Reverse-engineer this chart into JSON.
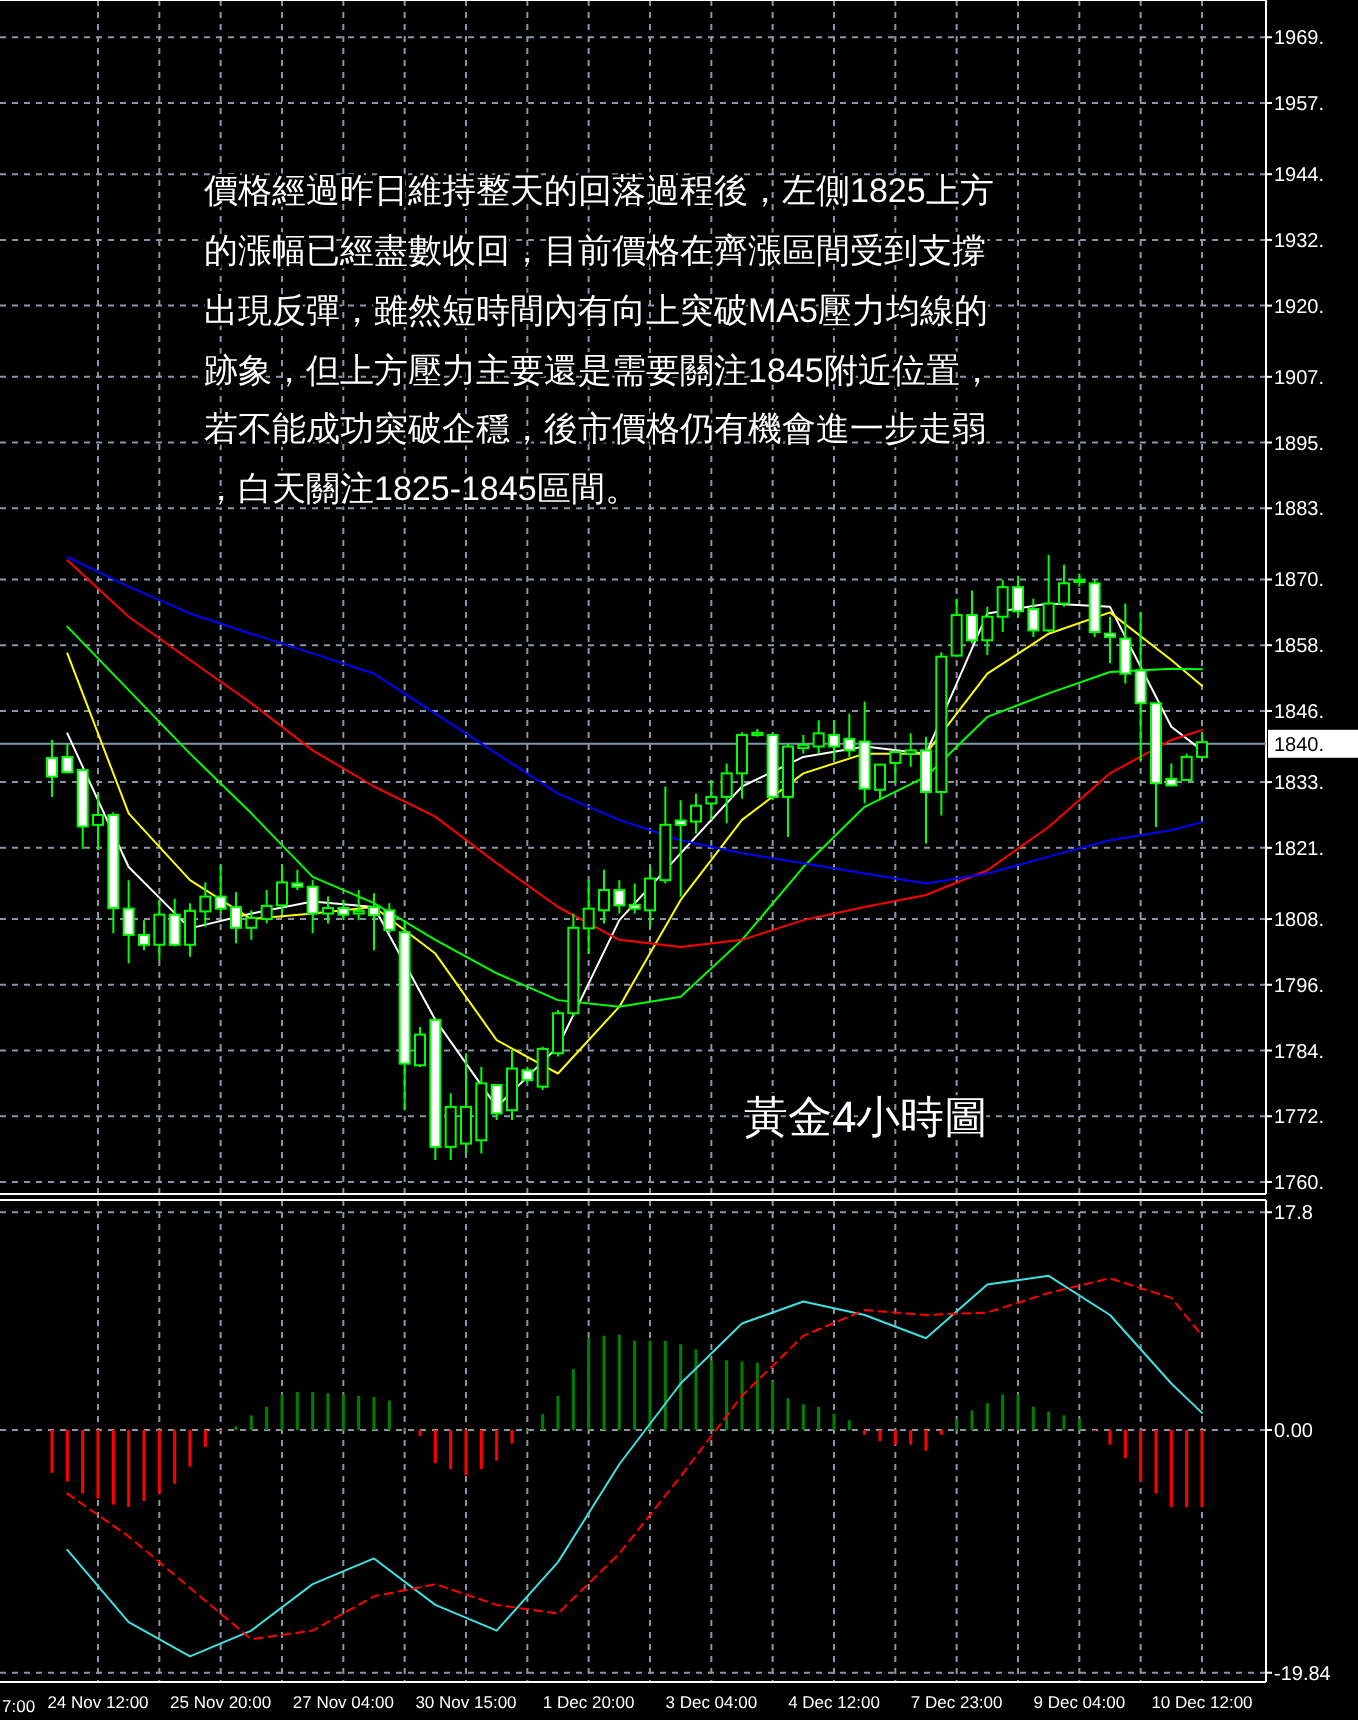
{
  "chart_data": [
    {
      "type": "candlestick",
      "categories": [
        null,
        null,
        null,
        null,
        null,
        null,
        null,
        null,
        null,
        null,
        null,
        null,
        null,
        null,
        null,
        null,
        null,
        null,
        null,
        null,
        null,
        null,
        null,
        null,
        null,
        null,
        null,
        null,
        null,
        null,
        null,
        null,
        null,
        null,
        null,
        null,
        null,
        null,
        null,
        null,
        null,
        null,
        null,
        null,
        null,
        null,
        null,
        null,
        null,
        null,
        null,
        null,
        null,
        null,
        null,
        null,
        null,
        null,
        null,
        null,
        null,
        null,
        null,
        null,
        null,
        null,
        null,
        null,
        null,
        null,
        null,
        null,
        null,
        null,
        null,
        null
      ],
      "tick_labels": "y",
      "ohlc": [
        [
          1837.4,
          1840.7,
          1830.3,
          1834.0
        ],
        [
          1837.6,
          1840.0,
          1834.6,
          1834.8
        ],
        [
          1835.2,
          1835.5,
          1820.8,
          1824.9
        ],
        [
          1825.2,
          1830.9,
          1820.6,
          1827.0
        ],
        [
          1827.0,
          1827.5,
          1805.4,
          1810.0
        ],
        [
          1809.9,
          1815.1,
          1799.9,
          1805.1
        ],
        [
          1805.1,
          1807.8,
          1802.3,
          1803.3
        ],
        [
          1803.3,
          1811.5,
          1800.5,
          1808.8
        ],
        [
          1808.8,
          1811.7,
          1803.0,
          1803.3
        ],
        [
          1803.3,
          1810.9,
          1801.1,
          1809.5
        ],
        [
          1809.4,
          1814.7,
          1806.6,
          1812.1
        ],
        [
          1812.1,
          1817.8,
          1809.0,
          1809.9
        ],
        [
          1810.2,
          1812.9,
          1803.6,
          1806.4
        ],
        [
          1806.4,
          1809.6,
          1804.2,
          1808.2
        ],
        [
          1808.0,
          1813.3,
          1807.2,
          1810.4
        ],
        [
          1810.5,
          1817.8,
          1809.0,
          1814.7
        ],
        [
          1814.5,
          1817.0,
          1813.3,
          1813.9
        ],
        [
          1813.9,
          1815.1,
          1805.4,
          1809.0
        ],
        [
          1809.0,
          1812.1,
          1807.2,
          1810.0
        ],
        [
          1810.0,
          1811.5,
          1807.8,
          1808.8
        ],
        [
          1809.0,
          1813.3,
          1807.8,
          1809.5
        ],
        [
          1810.2,
          1812.7,
          1802.3,
          1808.7
        ],
        [
          1809.6,
          1810.9,
          1805.4,
          1806.0
        ],
        [
          1805.6,
          1807.8,
          1773.1,
          1781.6
        ],
        [
          1781.3,
          1788.3,
          1781.0,
          1786.9
        ],
        [
          1789.6,
          1789.6,
          1764.0,
          1766.4
        ],
        [
          1766.4,
          1776.2,
          1764.0,
          1773.7
        ],
        [
          1767.0,
          1783.5,
          1765.2,
          1773.7
        ],
        [
          1767.6,
          1781.0,
          1765.2,
          1778.0
        ],
        [
          1777.7,
          1777.7,
          1771.3,
          1772.5
        ],
        [
          1773.1,
          1784.1,
          1771.3,
          1780.7
        ],
        [
          1780.4,
          1781.0,
          1778.2,
          1778.6
        ],
        [
          1777.4,
          1784.7,
          1776.8,
          1784.3
        ],
        [
          1783.5,
          1791.4,
          1782.9,
          1790.8
        ],
        [
          1790.8,
          1809.0,
          1790.2,
          1806.4
        ],
        [
          1806.3,
          1815.1,
          1801.7,
          1809.9
        ],
        [
          1809.6,
          1817.0,
          1807.2,
          1813.3
        ],
        [
          1813.3,
          1815.1,
          1809.0,
          1810.5
        ],
        [
          1810.6,
          1814.5,
          1809.0,
          1809.9
        ],
        [
          1809.6,
          1817.6,
          1806.6,
          1815.4
        ],
        [
          1815.1,
          1832.2,
          1814.5,
          1825.2
        ],
        [
          1826.0,
          1829.7,
          1812.1,
          1825.2
        ],
        [
          1825.8,
          1830.9,
          1823.6,
          1828.7
        ],
        [
          1829.1,
          1833.4,
          1826.1,
          1830.3
        ],
        [
          1830.3,
          1836.4,
          1825.5,
          1834.6
        ],
        [
          1834.6,
          1842.1,
          1830.0,
          1841.6
        ],
        [
          1841.6,
          1842.7,
          1841.3,
          1842.0
        ],
        [
          1841.6,
          1841.9,
          1829.7,
          1830.3
        ],
        [
          1830.3,
          1840.1,
          1823.0,
          1839.5
        ],
        [
          1839.2,
          1841.6,
          1838.2,
          1839.8
        ],
        [
          1839.5,
          1844.3,
          1838.2,
          1841.9
        ],
        [
          1841.6,
          1844.3,
          1837.0,
          1839.5
        ],
        [
          1840.9,
          1845.5,
          1837.6,
          1838.8
        ],
        [
          1840.4,
          1847.7,
          1829.1,
          1831.8
        ],
        [
          1831.6,
          1836.2,
          1829.7,
          1836.2
        ],
        [
          1836.5,
          1838.8,
          1832.8,
          1838.5
        ],
        [
          1838.2,
          1841.9,
          1835.8,
          1838.8
        ],
        [
          1838.8,
          1841.3,
          1821.8,
          1831.2
        ],
        [
          1831.2,
          1856.7,
          1826.9,
          1855.9
        ],
        [
          1856.1,
          1866.5,
          1855.9,
          1863.5
        ],
        [
          1863.5,
          1868.0,
          1858.3,
          1858.9
        ],
        [
          1858.9,
          1865.0,
          1856.2,
          1863.2
        ],
        [
          1863.2,
          1869.9,
          1860.4,
          1868.6
        ],
        [
          1868.6,
          1870.7,
          1863.2,
          1864.2
        ],
        [
          1864.6,
          1866.5,
          1859.5,
          1860.7
        ],
        [
          1860.7,
          1874.5,
          1860.4,
          1865.6
        ],
        [
          1865.6,
          1872.7,
          1865.0,
          1869.3
        ],
        [
          1869.9,
          1871.1,
          1868.7,
          1869.6
        ],
        [
          1869.3,
          1869.9,
          1859.5,
          1860.4
        ],
        [
          1860.1,
          1863.2,
          1854.7,
          1859.5
        ],
        [
          1859.2,
          1865.6,
          1851.0,
          1852.8
        ],
        [
          1853.4,
          1864.0,
          1837.0,
          1847.4
        ],
        [
          1847.4,
          1847.4,
          1824.8,
          1832.8
        ],
        [
          1833.6,
          1836.4,
          1832.4,
          1832.4
        ],
        [
          1833.4,
          1838.2,
          1833.4,
          1837.6
        ],
        [
          1837.6,
          1841.9,
          1837.6,
          1840.3
        ]
      ],
      "series": [
        {
          "type": "line",
          "color": "#ffffff",
          "values": [
            null,
            1841.9,
            null,
            null,
            null,
            1817.5,
            null,
            null,
            null,
            1806.3,
            null,
            null,
            null,
            1809.0,
            null,
            null,
            null,
            1811.2,
            null,
            null,
            null,
            1810.2,
            null,
            null,
            null,
            1789.6,
            null,
            null,
            null,
            1773.7,
            null,
            null,
            null,
            1784.7,
            null,
            null,
            null,
            1807.8,
            null,
            null,
            null,
            1820.0,
            null,
            null,
            null,
            1832.2,
            null,
            null,
            null,
            1837.6,
            null,
            null,
            null,
            1839.5,
            null,
            null,
            null,
            1838.2,
            null,
            null,
            null,
            1863.8,
            null,
            null,
            null,
            1865.6,
            null,
            null,
            null,
            1865.0,
            null,
            null,
            null,
            1843.1,
            null,
            1838.8
          ]
        },
        {
          "type": "line",
          "color": "#ffff00",
          "values": [
            null,
            1856.5,
            null,
            null,
            null,
            1827.3,
            null,
            null,
            null,
            1815.1,
            null,
            null,
            null,
            1808.0,
            null,
            null,
            null,
            1809.0,
            null,
            null,
            null,
            1810.2,
            null,
            null,
            null,
            1801.7,
            null,
            null,
            null,
            1785.9,
            null,
            null,
            null,
            1779.8,
            null,
            null,
            null,
            1792.0,
            null,
            null,
            null,
            1811.5,
            null,
            null,
            null,
            1826.1,
            null,
            null,
            null,
            1834.6,
            null,
            null,
            null,
            1838.2,
            null,
            null,
            null,
            1838.2,
            null,
            null,
            null,
            1852.8,
            null,
            null,
            null,
            1860.1,
            null,
            null,
            null,
            1864.0,
            null,
            null,
            null,
            1855.3,
            null,
            1850.6
          ]
        },
        {
          "type": "line",
          "color": "#00ff00",
          "values": [
            null,
            1861.4,
            null,
            null,
            null,
            1849.8,
            null,
            null,
            null,
            1838.2,
            null,
            null,
            null,
            1827.3,
            null,
            null,
            null,
            1815.7,
            null,
            null,
            null,
            1810.9,
            null,
            null,
            null,
            1804.2,
            null,
            null,
            null,
            1798.1,
            null,
            null,
            null,
            1793.2,
            null,
            null,
            null,
            1792.0,
            null,
            null,
            null,
            1793.8,
            null,
            null,
            null,
            1804.2,
            null,
            null,
            null,
            1817.5,
            null,
            null,
            null,
            1828.5,
            null,
            null,
            null,
            1834.0,
            null,
            null,
            null,
            1844.9,
            null,
            null,
            null,
            1849.2,
            null,
            null,
            null,
            1853.1,
            null,
            null,
            null,
            1853.7,
            null,
            1853.6
          ]
        },
        {
          "type": "line",
          "color": "#ff0000",
          "values": [
            null,
            1873.5,
            null,
            null,
            null,
            1863.2,
            null,
            null,
            null,
            1855.3,
            null,
            null,
            null,
            1847.4,
            null,
            null,
            null,
            1838.8,
            null,
            null,
            null,
            1832.2,
            null,
            null,
            null,
            1826.7,
            null,
            null,
            null,
            1818.2,
            null,
            null,
            null,
            1810.2,
            null,
            null,
            null,
            1804.2,
            null,
            null,
            null,
            1802.9,
            null,
            null,
            null,
            1804.2,
            null,
            null,
            null,
            1807.8,
            null,
            null,
            null,
            1810.2,
            null,
            null,
            null,
            1812.4,
            null,
            null,
            null,
            1816.9,
            null,
            null,
            null,
            1824.8,
            null,
            null,
            null,
            1834.6,
            null,
            null,
            null,
            1840.7,
            null,
            1842.5
          ]
        },
        {
          "type": "line",
          "color": "#0000ff",
          "values": [
            null,
            1874.1,
            null,
            null,
            null,
            1868.7,
            null,
            null,
            null,
            1863.8,
            null,
            null,
            null,
            1860.1,
            null,
            null,
            null,
            1856.5,
            null,
            null,
            null,
            1852.8,
            null,
            null,
            null,
            1845.5,
            null,
            null,
            null,
            1838.2,
            null,
            null,
            null,
            1830.9,
            null,
            null,
            null,
            1826.1,
            null,
            null,
            null,
            1822.4,
            null,
            null,
            null,
            1820.0,
            null,
            null,
            null,
            1818.2,
            null,
            null,
            null,
            1816.3,
            null,
            null,
            null,
            1814.5,
            null,
            null,
            null,
            1816.3,
            null,
            null,
            null,
            1819.4,
            null,
            null,
            null,
            1822.4,
            null,
            null,
            null,
            1824.2,
            null,
            1825.7
          ]
        }
      ],
      "ylim": [
        1757.8,
        1975.8
      ],
      "yticks": [
        {
          "value": 1760,
          "label": "1760."
        },
        {
          "value": 1772,
          "label": "1772."
        },
        {
          "value": 1784,
          "label": "1784."
        },
        {
          "value": 1796,
          "label": "1796."
        },
        {
          "value": 1808,
          "label": "1808."
        },
        {
          "value": 1821,
          "label": "1821."
        },
        {
          "value": 1833,
          "label": "1833."
        },
        {
          "value": 1846,
          "label": "1846."
        },
        {
          "value": 1858,
          "label": "1858."
        },
        {
          "value": 1870,
          "label": "1870."
        },
        {
          "value": 1883,
          "label": "1883."
        },
        {
          "value": 1895,
          "label": "1895."
        },
        {
          "value": 1907,
          "label": "1907."
        },
        {
          "value": 1920,
          "label": "1920."
        },
        {
          "value": 1932,
          "label": "1932."
        },
        {
          "value": 1944,
          "label": "1944."
        },
        {
          "value": 1957,
          "label": "1957."
        },
        {
          "value": 1969,
          "label": "1969."
        }
      ],
      "grid": true,
      "ref_lines": [
        {
          "axis": "y",
          "value": 1840,
          "label": "1840.",
          "color": "#8096aa"
        }
      ],
      "annotations": [
        "價格經過昨日維持整天的回落過程後，左側1825上方",
        "的漲幅已經盡數收回，目前價格在齊漲區間受到支撐",
        "出現反彈，雖然短時間內有向上突破MA5壓力均線的",
        "跡象，但上方壓力主要還是需要關注1845附近位置，",
        "若不能成功突破企穩，後市價格仍有機會進一步走弱",
        "，白天關注1825-1845區間。",
        "黃金4小時圖"
      ]
    },
    {
      "type": "bar",
      "annotations": [
        "7:00"
      ],
      "categories": [
        null,
        null,
        null,
        "24 Nov 12:00",
        null,
        null,
        null,
        null,
        null,
        null,
        null,
        "25 Nov 20:00",
        null,
        null,
        null,
        null,
        null,
        null,
        null,
        "27 Nov 04:00",
        null,
        null,
        null,
        null,
        null,
        null,
        null,
        "30 Nov 15:00",
        null,
        null,
        null,
        null,
        null,
        null,
        null,
        "1 Dec 20:00",
        null,
        null,
        null,
        null,
        null,
        null,
        null,
        "3 Dec 04:00",
        null,
        null,
        null,
        null,
        null,
        null,
        null,
        "4 Dec 12:00",
        null,
        null,
        null,
        null,
        null,
        null,
        null,
        "7 Dec 23:00",
        null,
        null,
        null,
        null,
        null,
        null,
        null,
        "9 Dec 04:00",
        null,
        null,
        null,
        null,
        null,
        null,
        null,
        "10 Dec 12:00"
      ],
      "series": [
        {
          "type": "bar",
          "values": [
            -3.5,
            -4.2,
            -5.2,
            -5.6,
            -6.1,
            -6.3,
            -5.8,
            -5.2,
            -4.4,
            -3.0,
            -1.4,
            -0.1,
            0.3,
            1.2,
            1.9,
            2.9,
            3.1,
            3.1,
            3.0,
            2.9,
            2.8,
            2.7,
            2.4,
            0,
            -0.5,
            -2.7,
            -3.2,
            -3.7,
            -3.2,
            -2.5,
            -1.1,
            0,
            1.3,
            2.8,
            5.0,
            7.5,
            7.7,
            7.8,
            7.3,
            7.3,
            7.3,
            7.0,
            6.6,
            5.7,
            5.7,
            5.6,
            5.5,
            4.0,
            2.6,
            2.1,
            1.9,
            1.3,
            0.8,
            -0.4,
            -0.9,
            -1.2,
            -1.2,
            -1.7,
            -0.4,
            0.9,
            1.6,
            2.2,
            2.9,
            2.9,
            1.9,
            1.5,
            1.2,
            0.9,
            -0.1,
            -1.2,
            -2.3,
            -4.2,
            -5.2,
            -6.3,
            -6.3,
            -6.3
          ],
          "colors": [
            "#ff0000",
            "#ff0000",
            "#ff0000",
            "#ff0000",
            "#ff0000",
            "#ff0000",
            "#ff0000",
            "#ff0000",
            "#ff0000",
            "#ff0000",
            "#ff0000",
            "#ff0000",
            "#008000",
            "#008000",
            "#008000",
            "#008000",
            "#008000",
            "#008000",
            "#008000",
            "#008000",
            "#008000",
            "#008000",
            "#008000",
            "#008000",
            "#ff0000",
            "#ff0000",
            "#ff0000",
            "#ff0000",
            "#ff0000",
            "#ff0000",
            "#ff0000",
            "#008000",
            "#008000",
            "#008000",
            "#008000",
            "#008000",
            "#008000",
            "#008000",
            "#008000",
            "#008000",
            "#008000",
            "#008000",
            "#008000",
            "#008000",
            "#008000",
            "#008000",
            "#008000",
            "#008000",
            "#008000",
            "#008000",
            "#008000",
            "#008000",
            "#008000",
            "#ff0000",
            "#ff0000",
            "#ff0000",
            "#ff0000",
            "#ff0000",
            "#ff0000",
            "#008000",
            "#008000",
            "#008000",
            "#008000",
            "#008000",
            "#008000",
            "#008000",
            "#008000",
            "#008000",
            "#ff0000",
            "#ff0000",
            "#ff0000",
            "#ff0000",
            "#ff0000",
            "#ff0000",
            "#ff0000",
            "#ff0000"
          ]
        },
        {
          "type": "line",
          "color": "#40e0e0",
          "values": [
            null,
            -9.8,
            null,
            null,
            null,
            -15.7,
            null,
            null,
            null,
            -18.5,
            null,
            null,
            null,
            -16.4,
            null,
            null,
            null,
            -12.6,
            null,
            null,
            null,
            -10.5,
            null,
            null,
            null,
            -14.3,
            null,
            null,
            null,
            -16.4,
            null,
            null,
            null,
            -10.8,
            null,
            null,
            null,
            -2.8,
            null,
            null,
            null,
            3.8,
            null,
            null,
            null,
            8.7,
            null,
            null,
            null,
            10.5,
            null,
            null,
            null,
            9.4,
            null,
            null,
            null,
            7.5,
            null,
            null,
            null,
            11.9,
            null,
            null,
            null,
            12.6,
            null,
            null,
            null,
            9.4,
            null,
            null,
            null,
            3.8,
            null,
            1.4
          ]
        },
        {
          "type": "line",
          "color": "#ff0000",
          "line_style": "dashed",
          "values": [
            null,
            -5.2,
            null,
            null,
            null,
            -8.7,
            null,
            null,
            null,
            -12.9,
            null,
            null,
            null,
            -17.1,
            null,
            null,
            null,
            -16.4,
            null,
            null,
            null,
            -13.6,
            null,
            null,
            null,
            -12.6,
            null,
            null,
            null,
            -14.3,
            null,
            null,
            null,
            -15.0,
            null,
            null,
            null,
            -10.1,
            null,
            null,
            null,
            -3.8,
            null,
            null,
            null,
            2.8,
            null,
            null,
            null,
            7.7,
            null,
            null,
            null,
            9.8,
            null,
            null,
            null,
            9.4,
            null,
            null,
            null,
            9.6,
            null,
            null,
            null,
            11.2,
            null,
            null,
            null,
            12.4,
            null,
            null,
            null,
            10.8,
            null,
            7.7
          ]
        }
      ],
      "ylim": [
        -20.6,
        18.8
      ],
      "yticks": [
        17.8,
        {
          "value": 0,
          "label": "0.00"
        },
        -19.84
      ],
      "grid": true
    }
  ]
}
